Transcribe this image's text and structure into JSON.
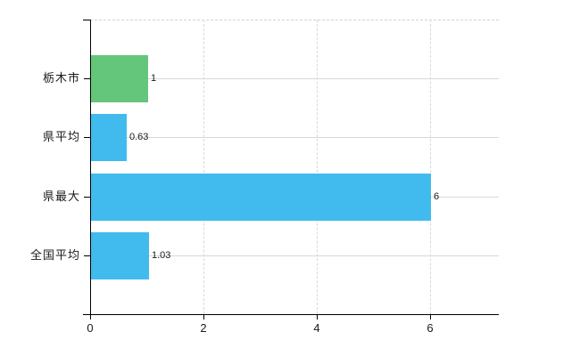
{
  "chart_data": {
    "type": "bar",
    "orientation": "horizontal",
    "title": "",
    "xlabel": "",
    "ylabel": "",
    "categories": [
      "栃木市",
      "県平均",
      "県最大",
      "全国平均"
    ],
    "values": [
      1,
      0.63,
      6,
      1.03
    ],
    "value_labels": [
      "1",
      "0.63",
      "6",
      "1.03"
    ],
    "bar_colors": [
      "#63c67a",
      "#41baee",
      "#41baee",
      "#41baee"
    ],
    "x_ticks": [
      0,
      2,
      4,
      6
    ],
    "x_tick_labels": [
      "0",
      "2",
      "4",
      "6"
    ],
    "xlim": [
      0,
      7.23
    ],
    "grid": true,
    "legend": false
  },
  "colors": {
    "axis": "#000000",
    "v_gridline": "#d9d9d9",
    "row_line": "#d6dad4",
    "top_border": "#d4d4d4",
    "text": "#1a1a1a",
    "background": "#ffffff"
  }
}
